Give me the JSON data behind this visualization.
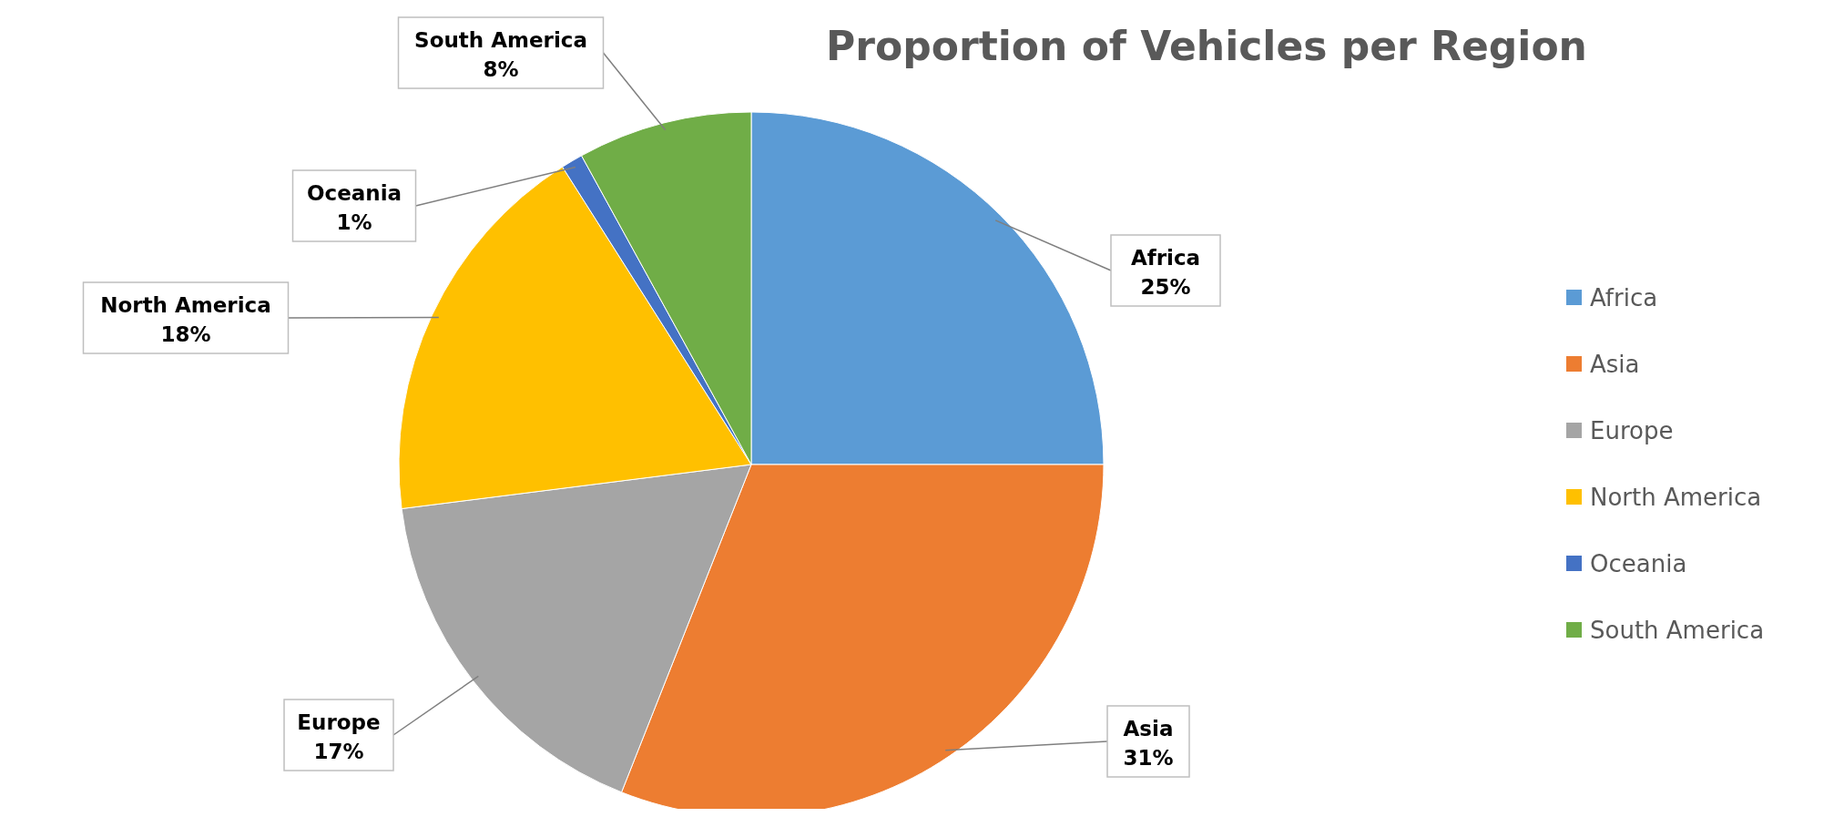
{
  "chart_data": {
    "type": "pie",
    "title": "Proportion of Vehicles per Region",
    "categories": [
      "Africa",
      "Asia",
      "Europe",
      "North America",
      "Oceania",
      "South America"
    ],
    "values": [
      25,
      31,
      17,
      18,
      1,
      8
    ],
    "colors": [
      "#5b9bd5",
      "#ed7d31",
      "#a5a5a5",
      "#ffc000",
      "#4472c4",
      "#70ad47"
    ],
    "value_labels": [
      "25%",
      "31%",
      "17%",
      "18%",
      "1%",
      "8%"
    ],
    "legend": "right"
  }
}
